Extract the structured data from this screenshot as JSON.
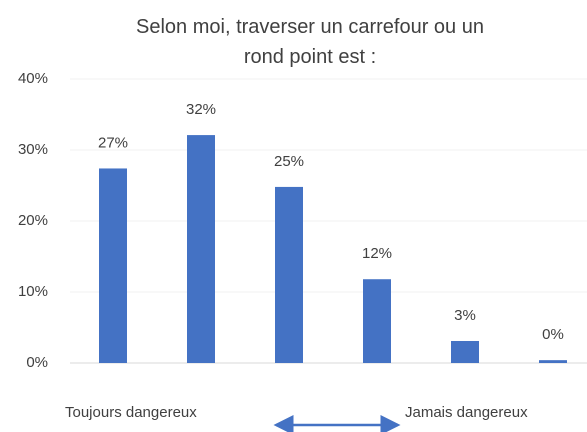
{
  "chart_data": {
    "type": "bar",
    "title": "Selon moi, traverser un carrefour ou un rond point est :",
    "categories": [
      null,
      null,
      null,
      null,
      null,
      null
    ],
    "values": [
      27.4,
      32.1,
      24.8,
      11.8,
      3.1,
      0.4
    ],
    "value_labels": [
      "27%",
      "32%",
      "25%",
      "12%",
      "3%",
      "0%"
    ],
    "color": "#4472c4",
    "ylim": [
      0,
      40
    ],
    "yticks": [
      {
        "value": 0,
        "label": "0%"
      },
      {
        "value": 10,
        "label": "10%"
      },
      {
        "value": 20,
        "label": "20%"
      },
      {
        "value": 30,
        "label": "30%"
      },
      {
        "value": 40,
        "label": "40%"
      }
    ],
    "grid": true,
    "annotations": [
      "Toujours dangereux",
      "Jamais dangereux"
    ]
  }
}
